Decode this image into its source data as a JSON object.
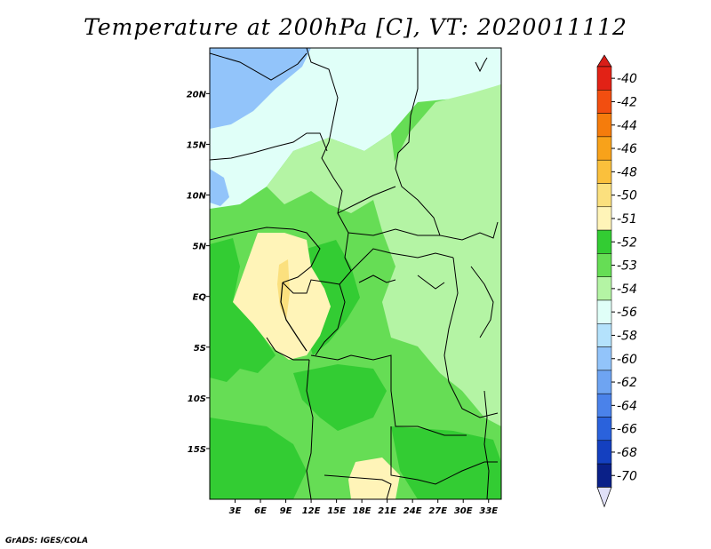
{
  "title": "Temperature at 200hPa [C], VT: 2020011112",
  "credit": "GrADS: IGES/COLA",
  "map": {
    "lon_range": [
      0,
      34.5
    ],
    "lat_range": [
      -20,
      24.5
    ],
    "x_ticks": [
      "3E",
      "6E",
      "9E",
      "12E",
      "15E",
      "18E",
      "21E",
      "24E",
      "27E",
      "30E",
      "33E"
    ],
    "x_tick_values": [
      3,
      6,
      9,
      12,
      15,
      18,
      21,
      24,
      27,
      30,
      33
    ],
    "y_ticks": [
      "20N",
      "15N",
      "10N",
      "5N",
      "EQ",
      "5S",
      "10S",
      "15S"
    ],
    "y_tick_values": [
      20,
      15,
      10,
      5,
      0,
      -5,
      -10,
      -15
    ]
  },
  "colorbar": {
    "labels": [
      "-40",
      "-42",
      "-44",
      "-46",
      "-48",
      "-50",
      "-51",
      "-52",
      "-53",
      "-54",
      "-56",
      "-58",
      "-60",
      "-62",
      "-64",
      "-66",
      "-68",
      "-70"
    ],
    "colors": [
      "#e22216",
      "#f24e10",
      "#f57c0c",
      "#f8a21a",
      "#fac03c",
      "#fbe07e",
      "#fff4b8",
      "#33cc33",
      "#66dd55",
      "#b4f4a4",
      "#e0fff8",
      "#b4e2fc",
      "#92c4fa",
      "#6ea4f2",
      "#4a82ea",
      "#2a62dc",
      "#1440c0",
      "#0a2088"
    ],
    "over_color": "#d81e18",
    "under_color": "#e0e0f8"
  },
  "colors": {
    "very_warm": "#fbe07e",
    "warm": "#fff4b8",
    "dark_green": "#33cc33",
    "mid_green": "#66dd55",
    "light_green": "#b4f4a4",
    "pale_cyan": "#e0fff8",
    "light_blue": "#92c4fa"
  }
}
